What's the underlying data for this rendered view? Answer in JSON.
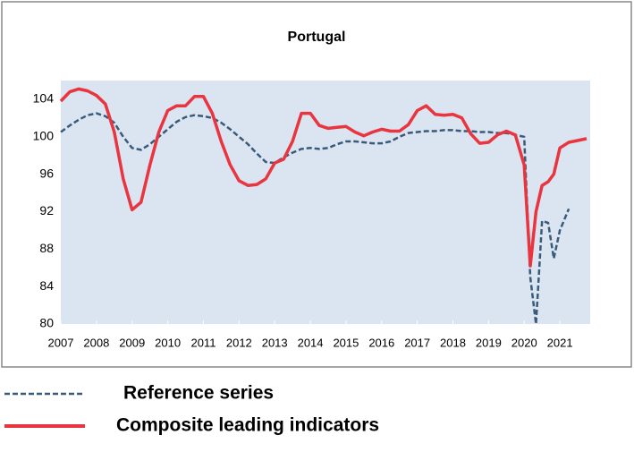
{
  "chart_data": {
    "type": "line",
    "title": "Portugal",
    "x": [
      2007,
      2007.25,
      2007.5,
      2007.75,
      2008,
      2008.25,
      2008.5,
      2008.75,
      2009,
      2009.25,
      2009.5,
      2009.75,
      2010,
      2010.25,
      2010.5,
      2010.75,
      2011,
      2011.25,
      2011.5,
      2011.75,
      2012,
      2012.25,
      2012.5,
      2012.75,
      2013,
      2013.25,
      2013.5,
      2013.75,
      2014,
      2014.25,
      2014.5,
      2014.75,
      2015,
      2015.25,
      2015.5,
      2015.75,
      2016,
      2016.25,
      2016.5,
      2016.75,
      2017,
      2017.25,
      2017.5,
      2017.75,
      2018,
      2018.25,
      2018.5,
      2018.75,
      2019,
      2019.25,
      2019.5,
      2019.75,
      2020,
      2020.17,
      2020.33,
      2020.5,
      2020.67,
      2020.83,
      2021,
      2021.25,
      2021.5,
      2021.75
    ],
    "series": [
      {
        "name": "Reference series",
        "color": "#3a5a7a",
        "dashed": true,
        "values": [
          100.5,
          101.2,
          101.8,
          102.3,
          102.5,
          102.2,
          101.5,
          100,
          98.8,
          98.6,
          99.2,
          100,
          100.8,
          101.6,
          102.1,
          102.3,
          102.2,
          102,
          101.5,
          100.8,
          100,
          99.2,
          98.2,
          97.3,
          97.2,
          97.8,
          98.3,
          98.7,
          98.8,
          98.7,
          98.8,
          99.2,
          99.5,
          99.5,
          99.4,
          99.3,
          99.3,
          99.5,
          100,
          100.4,
          100.5,
          100.6,
          100.6,
          100.7,
          100.7,
          100.6,
          100.6,
          100.5,
          100.5,
          100.4,
          100.4,
          100.2,
          100,
          85,
          80,
          91,
          90.8,
          87,
          90,
          92.3,
          null,
          null
        ]
      },
      {
        "name": "Composite leading indicators",
        "color": "#e8353f",
        "dashed": false,
        "values": [
          103.8,
          104.8,
          105.1,
          104.9,
          104.4,
          103.5,
          100.5,
          95.5,
          92.2,
          93,
          97,
          100.5,
          102.8,
          103.3,
          103.3,
          104.3,
          104.3,
          102.5,
          99.5,
          97,
          95.3,
          94.8,
          94.9,
          95.5,
          97.2,
          97.6,
          99.5,
          102.5,
          102.5,
          101.2,
          100.9,
          101,
          101.1,
          100.5,
          100.1,
          100.5,
          100.8,
          100.6,
          100.6,
          101.3,
          102.8,
          103.3,
          102.4,
          102.3,
          102.4,
          102,
          100.3,
          99.3,
          99.4,
          100.2,
          100.6,
          100.2,
          97,
          86.2,
          92,
          94.8,
          95.2,
          96,
          98.8,
          99.4,
          99.6,
          99.8
        ]
      }
    ],
    "xlim": [
      2007,
      2021.85
    ],
    "xticks": [
      2007,
      2008,
      2009,
      2010,
      2011,
      2012,
      2013,
      2014,
      2015,
      2016,
      2017,
      2018,
      2019,
      2020,
      2021
    ],
    "ylim": [
      80,
      106
    ],
    "yticks": [
      80,
      84,
      88,
      92,
      96,
      100,
      104
    ],
    "grid": false
  }
}
